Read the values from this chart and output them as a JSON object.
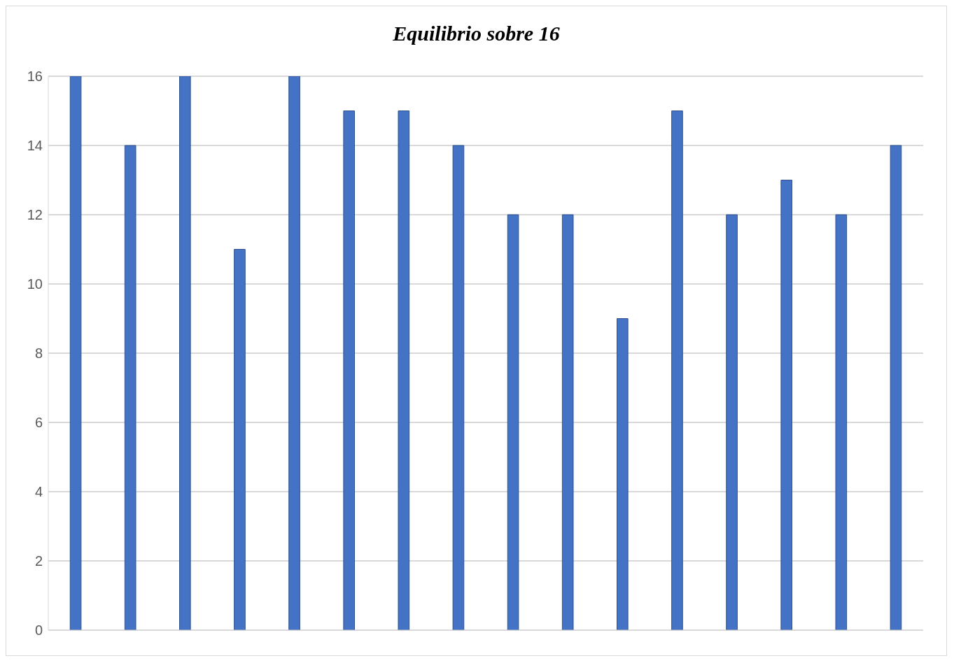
{
  "chart_data": {
    "type": "bar",
    "title": "Equilibrio sobre 16",
    "categories": [
      null,
      null,
      null,
      null,
      null,
      null,
      null,
      null,
      null,
      null,
      null,
      null,
      null,
      null,
      null,
      null
    ],
    "values": [
      16,
      14,
      16,
      11,
      16,
      15,
      15,
      14,
      12,
      12,
      9,
      15,
      12,
      13,
      12,
      14
    ],
    "color": "#4472c4",
    "ylim": [
      0,
      16
    ],
    "yticks": [
      0,
      2,
      4,
      6,
      8,
      10,
      12,
      14,
      16
    ],
    "grid": "y"
  }
}
